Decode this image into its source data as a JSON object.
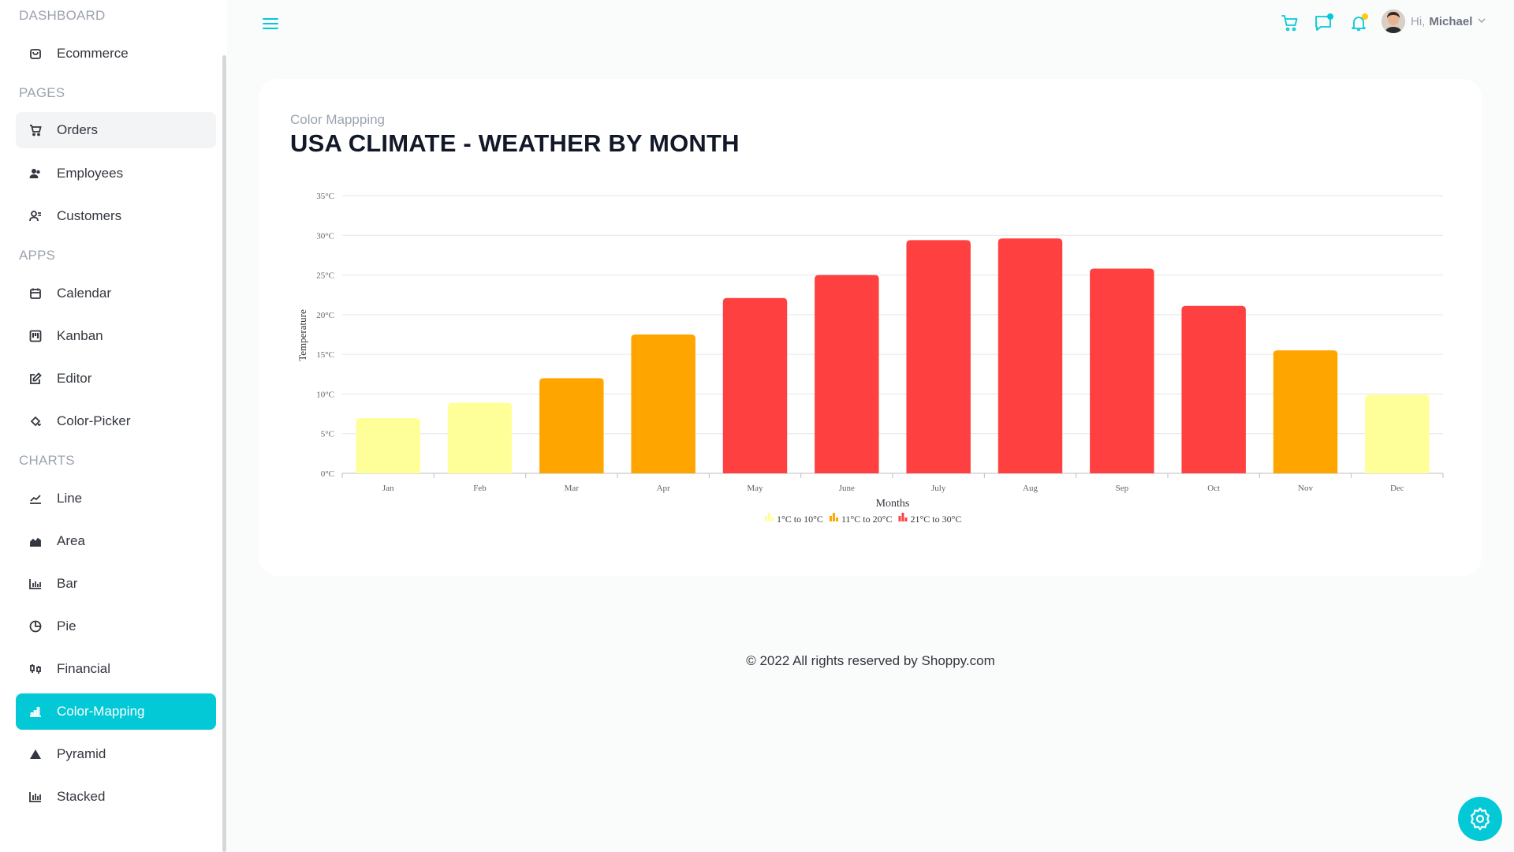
{
  "sidebar": {
    "sections": [
      {
        "title": "DASHBOARD",
        "items": [
          {
            "label": "Ecommerce",
            "icon": "shopping-bag-icon"
          }
        ]
      },
      {
        "title": "PAGES",
        "items": [
          {
            "label": "Orders",
            "icon": "cart-icon"
          },
          {
            "label": "Employees",
            "icon": "employees-icon"
          },
          {
            "label": "Customers",
            "icon": "customers-icon"
          }
        ]
      },
      {
        "title": "APPS",
        "items": [
          {
            "label": "Calendar",
            "icon": "calendar-icon"
          },
          {
            "label": "Kanban",
            "icon": "kanban-icon"
          },
          {
            "label": "Editor",
            "icon": "edit-icon"
          },
          {
            "label": "Color-Picker",
            "icon": "paint-bucket-icon"
          }
        ]
      },
      {
        "title": "CHARTS",
        "items": [
          {
            "label": "Line",
            "icon": "line-chart-icon"
          },
          {
            "label": "Area",
            "icon": "area-chart-icon"
          },
          {
            "label": "Bar",
            "icon": "bar-chart-icon"
          },
          {
            "label": "Pie",
            "icon": "pie-chart-icon"
          },
          {
            "label": "Financial",
            "icon": "financial-icon"
          },
          {
            "label": "Color-Mapping",
            "icon": "color-mapping-icon"
          },
          {
            "label": "Pyramid",
            "icon": "pyramid-icon"
          },
          {
            "label": "Stacked",
            "icon": "stacked-chart-icon"
          }
        ]
      }
    ],
    "active_item": "Color-Mapping",
    "hover_item": "Orders"
  },
  "topbar": {
    "greeting": "Hi,",
    "user_name": "Michael",
    "accent_color": "#03c9d7",
    "chat_dot_color": "#03c9d7",
    "notification_dot_color": "#fec90f"
  },
  "main": {
    "subtitle": "Color Mappping",
    "title": "USA CLIMATE - WEATHER BY MONTH"
  },
  "chart_data": {
    "type": "bar",
    "categories": [
      "Jan",
      "Feb",
      "Mar",
      "Apr",
      "May",
      "June",
      "July",
      "Aug",
      "Sep",
      "Oct",
      "Nov",
      "Dec"
    ],
    "values": [
      6.96,
      8.9,
      12,
      17.5,
      22.1,
      25,
      29.4,
      29.6,
      25.8,
      21.1,
      15.5,
      9.9
    ],
    "ylabel": "Temperature",
    "xlabel": "Months",
    "ylim": [
      0,
      35
    ],
    "yticks": [
      "0°C",
      "5°C",
      "10°C",
      "15°C",
      "20°C",
      "25°C",
      "30°C",
      "35°C"
    ],
    "grid": true,
    "legend_position": "bottom",
    "color_ranges": [
      {
        "label": "1°C to 10°C",
        "min": 1,
        "max": 10,
        "color": "#ffff99"
      },
      {
        "label": "11°C to 20°C",
        "min": 11,
        "max": 20,
        "color": "#ffa500"
      },
      {
        "label": "21°C to 30°C",
        "min": 21,
        "max": 30,
        "color": "#ff4040"
      }
    ]
  },
  "footer": {
    "text": "© 2022 All rights reserved by Shoppy.com"
  }
}
